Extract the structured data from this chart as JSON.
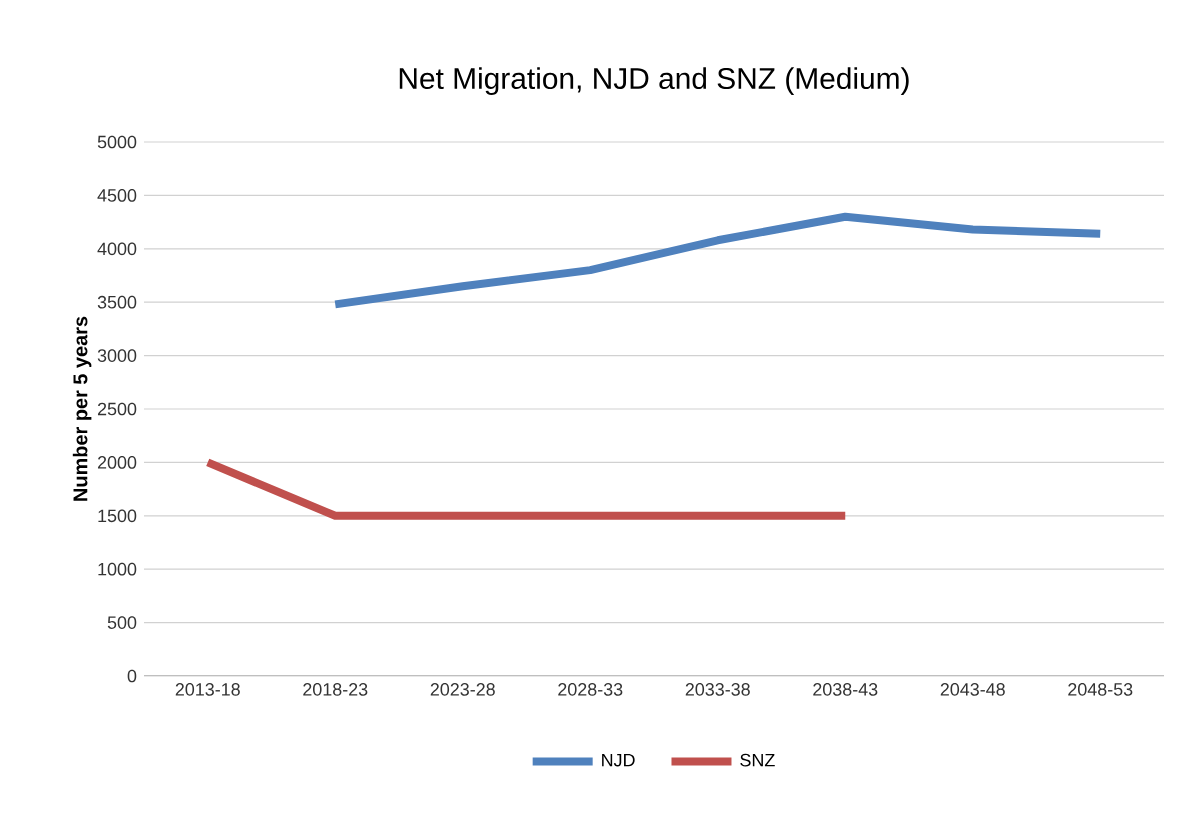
{
  "chart_data": {
    "type": "line",
    "title": "Net Migration, NJD and SNZ (Medium)",
    "ylabel": "Number per 5 years",
    "categories": [
      "2013-18",
      "2018-23",
      "2023-28",
      "2028-33",
      "2033-38",
      "2038-43",
      "2043-48",
      "2048-53"
    ],
    "series": [
      {
        "name": "NJD",
        "color": "#4f81bd",
        "values": [
          null,
          3480,
          3650,
          3800,
          4080,
          4300,
          4180,
          4140
        ]
      },
      {
        "name": "SNZ",
        "color": "#c0504d",
        "values": [
          2000,
          1500,
          1500,
          1500,
          1500,
          1500,
          null,
          null
        ]
      }
    ],
    "ylim": [
      0,
      5000
    ],
    "yticks": [
      0,
      500,
      1000,
      1500,
      2000,
      2500,
      3000,
      3500,
      4000,
      4500,
      5000
    ],
    "grid": "y",
    "legend": "bottom"
  }
}
